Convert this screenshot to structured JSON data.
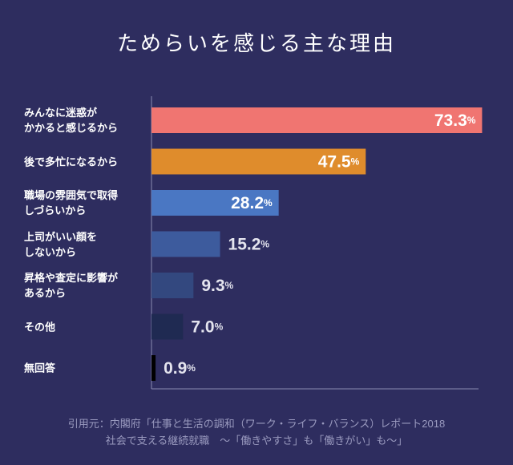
{
  "chart_data": {
    "type": "bar",
    "orientation": "horizontal",
    "title": "ためらいを感じる主な理由",
    "categories": [
      "みんなに迷惑が\nかかると感じるから",
      "後で多忙になるから",
      "職場の雰囲気で取得\nしづらいから",
      "上司がいい顔を\nしないから",
      "昇格や査定に影響が\nあるから",
      "その他",
      "無回答"
    ],
    "values": [
      73.3,
      47.5,
      28.2,
      15.2,
      9.3,
      7.0,
      0.9
    ],
    "value_labels": [
      "73.3%",
      "47.5%",
      "28.2%",
      "15.2%",
      "9.3%",
      "7.0%",
      "0.9%"
    ],
    "colors": [
      "#f07571",
      "#df8c2c",
      "#4a77c3",
      "#3d5b9d",
      "#33487f",
      "#1f2a52",
      "#000000"
    ],
    "xlim": [
      0,
      75
    ],
    "source": "引用元：内閣府「仕事と生活の調和（ワーク・ライフ・バランス）レポート2018\n社会で支える継続就職　～「働きやすさ」も「働きがい」も～」"
  }
}
